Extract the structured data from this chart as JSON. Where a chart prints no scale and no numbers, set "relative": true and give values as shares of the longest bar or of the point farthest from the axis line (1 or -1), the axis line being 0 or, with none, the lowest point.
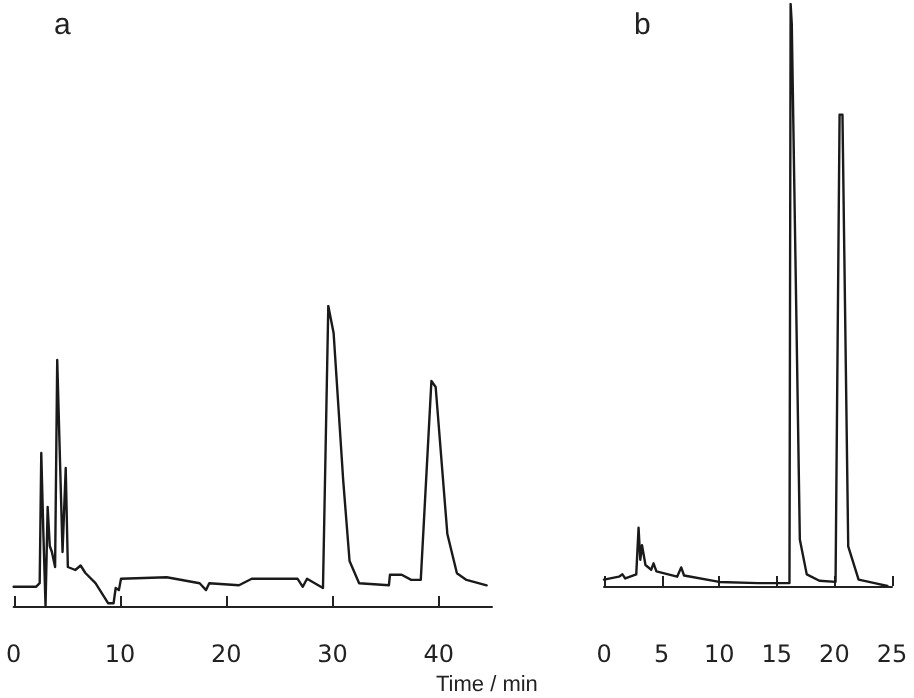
{
  "chart_data": [
    {
      "type": "line",
      "title": "a",
      "xlabel": "Time / min",
      "relative": true,
      "color": "#1a1a1a",
      "xlim": [
        0,
        45
      ],
      "xticks": [
        0,
        10,
        20,
        30,
        40
      ],
      "x": [
        0,
        2.1,
        2.45,
        2.6,
        2.8,
        3.0,
        3.2,
        3.4,
        3.6,
        3.9,
        4.1,
        4.6,
        4.9,
        5.1,
        5.8,
        6.3,
        6.75,
        7.7,
        8.9,
        9.4,
        9.6,
        9.9,
        10.1,
        14.4,
        17.5,
        18.1,
        18.4,
        21.2,
        22.4,
        26.7,
        27.2,
        27.6,
        29.1,
        29.6,
        30.1,
        31.0,
        31.6,
        32.5,
        35.3,
        35.4,
        36.5,
        37.4,
        38.3,
        39.3,
        39.7,
        40.8,
        41.7,
        42.6,
        44.5
      ],
      "values": [
        0.064,
        0.064,
        0.076,
        0.51,
        0.24,
        0.0,
        0.33,
        0.2,
        0.18,
        0.13,
        0.82,
        0.18,
        0.46,
        0.13,
        0.12,
        0.135,
        0.11,
        0.076,
        0.009,
        0.009,
        0.06,
        0.053,
        0.091,
        0.096,
        0.076,
        0.053,
        0.076,
        0.069,
        0.091,
        0.091,
        0.064,
        0.091,
        0.06,
        1.0,
        0.91,
        0.42,
        0.15,
        0.076,
        0.069,
        0.104,
        0.104,
        0.087,
        0.087,
        0.75,
        0.73,
        0.24,
        0.109,
        0.087,
        0.069
      ]
    },
    {
      "type": "line",
      "title": "b",
      "relative": true,
      "color": "#1a1a1a",
      "xlim": [
        0,
        25
      ],
      "xticks": [
        0,
        5,
        10,
        15,
        20,
        25
      ],
      "x": [
        0,
        1.3,
        1.6,
        1.85,
        2.8,
        3.0,
        3.15,
        3.3,
        3.6,
        4.1,
        4.3,
        4.55,
        6.35,
        6.7,
        6.95,
        10,
        13.4,
        16.1,
        16.2,
        16.3,
        17.0,
        17.6,
        18.7,
        20.1,
        20.45,
        20.7,
        21.2,
        22.1,
        23.5,
        24.6
      ],
      "values": [
        0.011,
        0.016,
        0.02,
        0.013,
        0.02,
        0.1,
        0.045,
        0.07,
        0.036,
        0.028,
        0.039,
        0.025,
        0.016,
        0.032,
        0.018,
        0.007,
        0.005,
        0.005,
        1.0,
        0.966,
        0.08,
        0.02,
        0.009,
        0.007,
        0.81,
        0.81,
        0.068,
        0.011,
        0.005,
        0.0
      ]
    }
  ]
}
